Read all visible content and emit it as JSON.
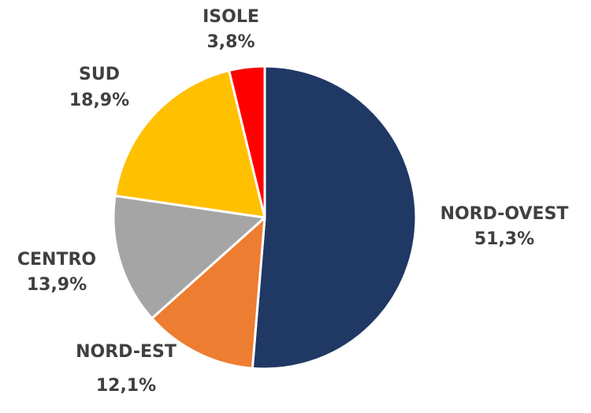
{
  "chart_data": {
    "type": "pie",
    "categories": [
      "NORD-OVEST",
      "NORD-EST",
      "CENTRO",
      "SUD",
      "ISOLE"
    ],
    "values": [
      51.3,
      12.1,
      13.9,
      18.9,
      3.8
    ],
    "value_labels": [
      "51,3%",
      "12,1%",
      "13,9%",
      "18,9%",
      "3,8%"
    ],
    "colors": [
      "#203864",
      "#ED7D31",
      "#A5A5A5",
      "#FFC000",
      "#FF0000"
    ]
  }
}
